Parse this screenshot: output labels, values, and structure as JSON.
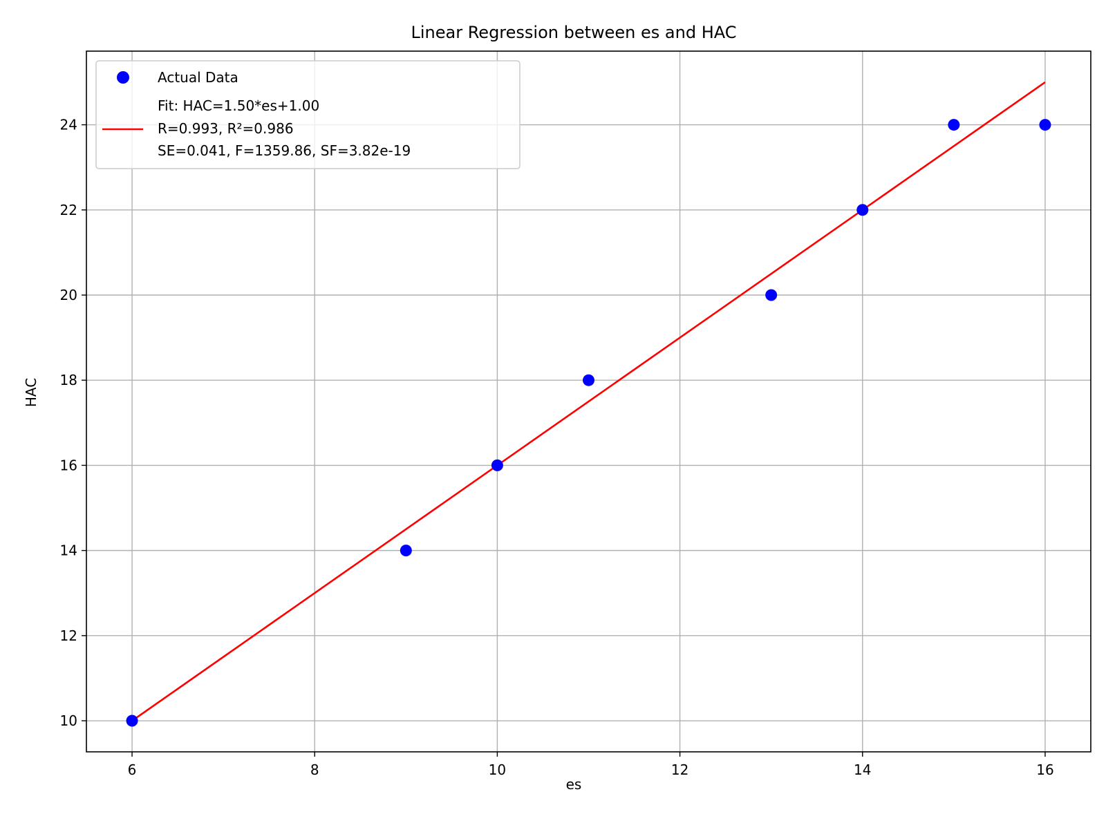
{
  "chart_data": {
    "type": "scatter",
    "title": "Linear Regression between es and HAC",
    "xlabel": "es",
    "ylabel": "HAC",
    "xlim": [
      5.5,
      16.5
    ],
    "ylim": [
      9.27,
      25.73
    ],
    "x_ticks": [
      6,
      8,
      10,
      12,
      14,
      16
    ],
    "y_ticks": [
      10,
      12,
      14,
      16,
      18,
      20,
      22,
      24
    ],
    "grid": true,
    "legend_position": "top-left",
    "series": [
      {
        "name": "Actual Data",
        "kind": "scatter",
        "color": "#0000ff",
        "points": [
          {
            "x": 6,
            "y": 10
          },
          {
            "x": 9,
            "y": 14
          },
          {
            "x": 10,
            "y": 16
          },
          {
            "x": 11,
            "y": 18
          },
          {
            "x": 13,
            "y": 20
          },
          {
            "x": 14,
            "y": 22
          },
          {
            "x": 15,
            "y": 24
          },
          {
            "x": 16,
            "y": 24
          }
        ]
      },
      {
        "name": "Fit: HAC=1.50*es+1.00\nR=0.993, R²=0.986\nSE=0.041, F=1359.86, SF=3.82e-19",
        "kind": "line",
        "color": "#ff0000",
        "points": [
          {
            "x": 6,
            "y": 10
          },
          {
            "x": 16,
            "y": 25
          }
        ]
      }
    ],
    "legend": [
      {
        "label": "Actual Data",
        "marker": "dot",
        "color": "#0000ff"
      },
      {
        "label_lines": [
          "Fit: HAC=1.50*es+1.00",
          "R=0.993, R²=0.986",
          "SE=0.041, F=1359.86, SF=3.82e-19"
        ],
        "marker": "line",
        "color": "#ff0000"
      }
    ]
  }
}
